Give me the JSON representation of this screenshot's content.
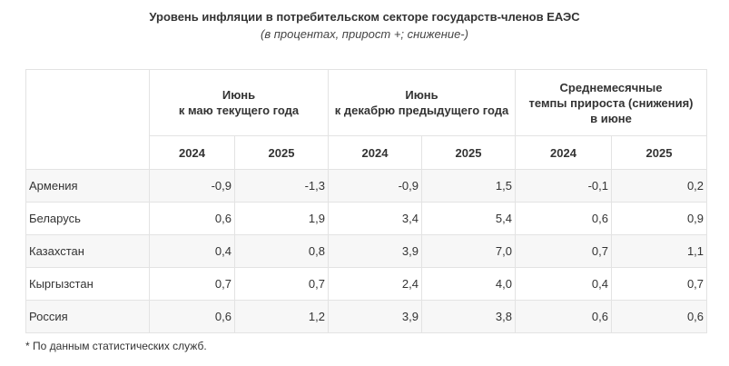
{
  "title": "Уровень инфляции в потребительском секторе государств-членов ЕАЭС",
  "subtitle": "(в процентах, прирост +; снижение-)",
  "header": {
    "groups": [
      {
        "line1": "Июнь",
        "line2": "к маю текущего года",
        "line3": ""
      },
      {
        "line1": "Июнь",
        "line2": "к декабрю предыдущего года",
        "line3": ""
      },
      {
        "line1": "Среднемесячные",
        "line2": "темпы прироста (снижения)",
        "line3": "в июне"
      }
    ],
    "years": [
      "2024",
      "2025",
      "2024",
      "2025",
      "2024",
      "2025"
    ]
  },
  "rows": [
    {
      "country": "Армения",
      "values": [
        "-0,9",
        "-1,3",
        "-0,9",
        "1,5",
        "-0,1",
        "0,2"
      ]
    },
    {
      "country": "Беларусь",
      "values": [
        "0,6",
        "1,9",
        "3,4",
        "5,4",
        "0,6",
        "0,9"
      ]
    },
    {
      "country": "Казахстан",
      "values": [
        "0,4",
        "0,8",
        "3,9",
        "7,0",
        "0,7",
        "1,1"
      ]
    },
    {
      "country": "Кыргызстан",
      "values": [
        "0,7",
        "0,7",
        "2,4",
        "4,0",
        "0,4",
        "0,7"
      ]
    },
    {
      "country": "Россия",
      "values": [
        "0,6",
        "1,2",
        "3,9",
        "3,8",
        "0,6",
        "0,6"
      ]
    }
  ],
  "footnote": "* По данным статистических служб."
}
